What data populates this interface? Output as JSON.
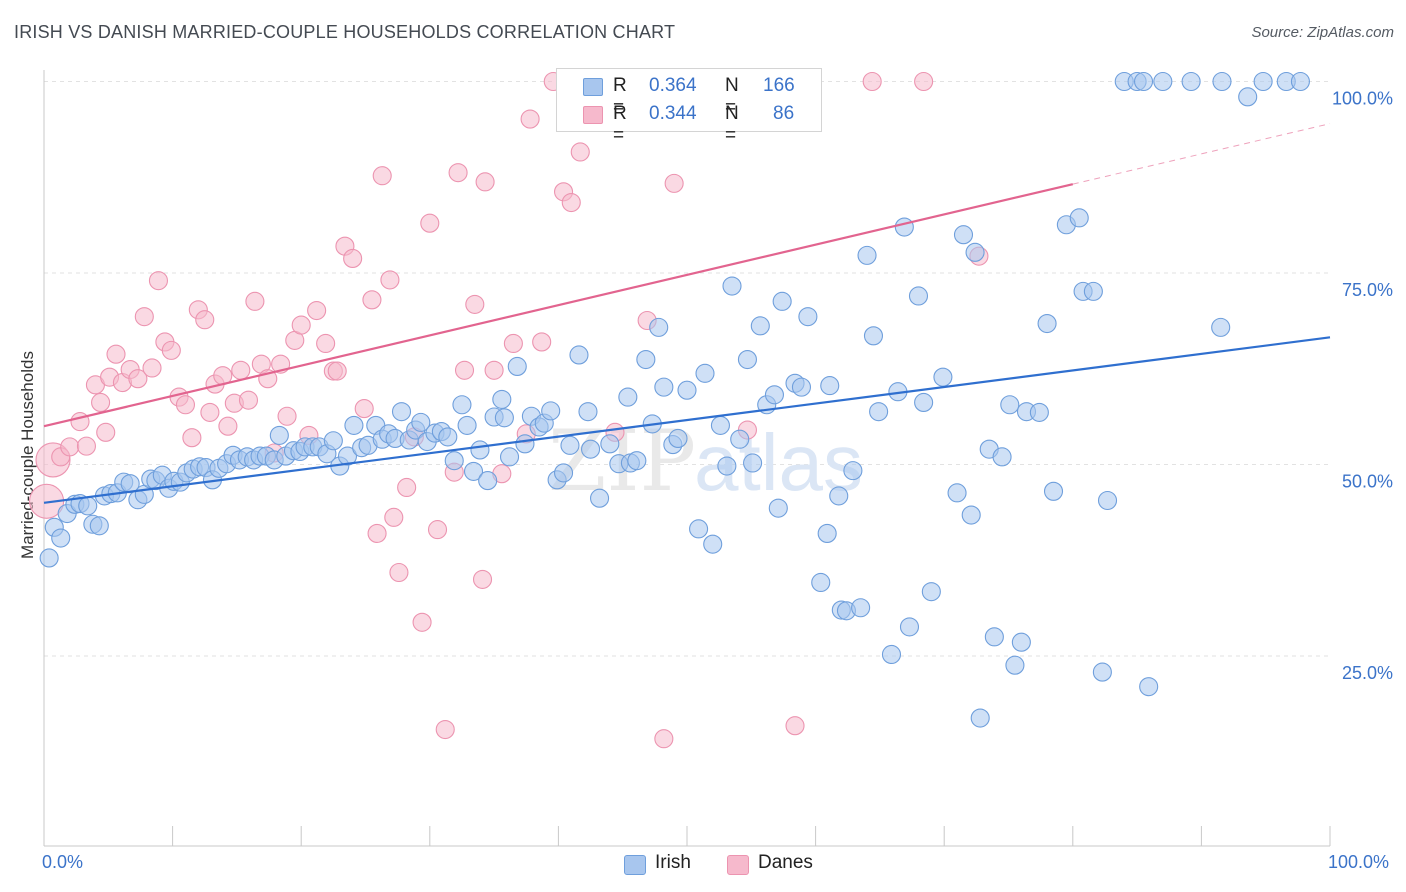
{
  "header": {
    "title": "IRISH VS DANISH MARRIED-COUPLE HOUSEHOLDS CORRELATION CHART",
    "source": "Source: ZipAtlas.com"
  },
  "watermark": {
    "zip": "ZIP",
    "atlas": "atlas"
  },
  "colors": {
    "irish_fill": "#a8c6ee",
    "irish_stroke": "#6f9fdc",
    "irish_line": "#2f6fcf",
    "danes_fill": "#f6b9cc",
    "danes_stroke": "#ec94b0",
    "danes_line": "#e2648f",
    "axis_text": "#3b73c9",
    "grid": "#e2e2e2"
  },
  "stats": {
    "irish": {
      "r_label": "R =",
      "r_value": "0.364",
      "n_label": "N =",
      "n_value": "166"
    },
    "danes": {
      "r_label": "R =",
      "r_value": "0.344",
      "n_label": "N =",
      "n_value": "86"
    }
  },
  "legend": {
    "irish": "Irish",
    "danes": "Danes"
  },
  "chart_data": {
    "type": "scatter",
    "xlabel": "",
    "ylabel": "Married-couple Households",
    "xlim": [
      0,
      100
    ],
    "ylim": [
      5,
      105
    ],
    "x_tick_labels": [
      "0.0%",
      "100.0%"
    ],
    "y_ticks": [
      {
        "value": 25,
        "label": "25.0%"
      },
      {
        "value": 50,
        "label": "50.0%"
      },
      {
        "value": 75,
        "label": "75.0%"
      },
      {
        "value": 100,
        "label": "100.0%"
      }
    ],
    "grid": true,
    "legend_position": "bottom-center",
    "series": [
      {
        "name": "Irish",
        "trend": {
          "x": [
            0,
            100
          ],
          "y": [
            45.0,
            66.6
          ]
        },
        "points": [
          [
            0.4,
            37.8
          ],
          [
            0.8,
            41.8
          ],
          [
            1.3,
            40.4
          ],
          [
            1.8,
            43.6
          ],
          [
            2.4,
            44.8
          ],
          [
            2.8,
            44.9
          ],
          [
            3.4,
            44.6
          ],
          [
            3.8,
            42.2
          ],
          [
            4.3,
            42.0
          ],
          [
            4.7,
            45.9
          ],
          [
            5.2,
            46.2
          ],
          [
            5.7,
            46.3
          ],
          [
            6.2,
            47.7
          ],
          [
            6.7,
            47.5
          ],
          [
            7.3,
            45.4
          ],
          [
            7.8,
            46.1
          ],
          [
            8.3,
            48.1
          ],
          [
            8.7,
            47.9
          ],
          [
            9.2,
            48.6
          ],
          [
            9.7,
            46.9
          ],
          [
            10.1,
            47.8
          ],
          [
            10.6,
            47.7
          ],
          [
            11.1,
            48.9
          ],
          [
            11.6,
            49.4
          ],
          [
            12.1,
            49.7
          ],
          [
            12.6,
            49.6
          ],
          [
            13.1,
            48.0
          ],
          [
            13.6,
            49.5
          ],
          [
            14.2,
            50.1
          ],
          [
            14.7,
            51.2
          ],
          [
            15.2,
            50.6
          ],
          [
            15.8,
            51.0
          ],
          [
            16.3,
            50.6
          ],
          [
            16.8,
            51.1
          ],
          [
            17.3,
            51.1
          ],
          [
            17.9,
            50.6
          ],
          [
            18.3,
            53.8
          ],
          [
            18.8,
            51.1
          ],
          [
            19.4,
            51.8
          ],
          [
            19.9,
            51.7
          ],
          [
            20.3,
            52.3
          ],
          [
            20.9,
            52.3
          ],
          [
            21.4,
            52.3
          ],
          [
            22.0,
            51.4
          ],
          [
            22.5,
            53.1
          ],
          [
            23.0,
            49.8
          ],
          [
            23.6,
            51.1
          ],
          [
            24.1,
            55.1
          ],
          [
            24.7,
            52.2
          ],
          [
            25.2,
            52.5
          ],
          [
            25.8,
            55.1
          ],
          [
            26.3,
            53.3
          ],
          [
            26.8,
            54.0
          ],
          [
            27.3,
            53.4
          ],
          [
            27.8,
            56.9
          ],
          [
            28.4,
            53.2
          ],
          [
            28.9,
            54.5
          ],
          [
            29.3,
            55.5
          ],
          [
            29.8,
            53.0
          ],
          [
            30.4,
            54.1
          ],
          [
            30.9,
            54.3
          ],
          [
            31.4,
            53.6
          ],
          [
            31.9,
            50.5
          ],
          [
            32.5,
            57.8
          ],
          [
            32.9,
            55.1
          ],
          [
            33.4,
            49.1
          ],
          [
            33.9,
            51.9
          ],
          [
            34.5,
            47.9
          ],
          [
            35.0,
            56.2
          ],
          [
            35.6,
            58.5
          ],
          [
            35.8,
            56.1
          ],
          [
            36.2,
            51.0
          ],
          [
            36.8,
            62.8
          ],
          [
            37.4,
            52.7
          ],
          [
            37.9,
            56.3
          ],
          [
            38.5,
            54.9
          ],
          [
            38.9,
            55.4
          ],
          [
            39.4,
            57.0
          ],
          [
            39.9,
            48.0
          ],
          [
            40.4,
            48.9
          ],
          [
            40.9,
            52.5
          ],
          [
            41.6,
            64.3
          ],
          [
            42.3,
            56.9
          ],
          [
            42.5,
            52.0
          ],
          [
            43.2,
            45.6
          ],
          [
            44.0,
            52.7
          ],
          [
            44.7,
            50.1
          ],
          [
            45.4,
            58.8
          ],
          [
            45.6,
            50.2
          ],
          [
            46.1,
            50.5
          ],
          [
            46.8,
            63.7
          ],
          [
            47.3,
            55.3
          ],
          [
            47.8,
            67.9
          ],
          [
            48.2,
            60.1
          ],
          [
            48.9,
            52.6
          ],
          [
            49.3,
            53.4
          ],
          [
            50.0,
            59.7
          ],
          [
            50.9,
            41.6
          ],
          [
            51.4,
            61.9
          ],
          [
            52.0,
            39.6
          ],
          [
            52.6,
            55.1
          ],
          [
            53.1,
            49.8
          ],
          [
            53.5,
            73.3
          ],
          [
            54.1,
            53.3
          ],
          [
            54.7,
            63.7
          ],
          [
            55.1,
            50.2
          ],
          [
            55.7,
            68.1
          ],
          [
            56.2,
            57.8
          ],
          [
            56.8,
            59.1
          ],
          [
            57.1,
            44.3
          ],
          [
            57.4,
            71.3
          ],
          [
            58.4,
            60.6
          ],
          [
            58.9,
            60.1
          ],
          [
            59.4,
            69.3
          ],
          [
            60.4,
            34.6
          ],
          [
            60.9,
            41.0
          ],
          [
            61.1,
            60.3
          ],
          [
            61.8,
            45.9
          ],
          [
            62.0,
            31.0
          ],
          [
            62.4,
            30.9
          ],
          [
            62.9,
            49.2
          ],
          [
            63.5,
            31.3
          ],
          [
            64.0,
            77.3
          ],
          [
            64.5,
            66.8
          ],
          [
            64.9,
            56.9
          ],
          [
            65.9,
            25.2
          ],
          [
            66.4,
            59.5
          ],
          [
            66.9,
            81.0
          ],
          [
            67.3,
            28.8
          ],
          [
            68.0,
            72.0
          ],
          [
            68.4,
            58.1
          ],
          [
            69.0,
            33.4
          ],
          [
            69.9,
            61.4
          ],
          [
            71.0,
            46.3
          ],
          [
            71.5,
            80.0
          ],
          [
            72.1,
            43.4
          ],
          [
            72.4,
            77.7
          ],
          [
            72.8,
            16.9
          ],
          [
            73.5,
            52.0
          ],
          [
            73.9,
            27.5
          ],
          [
            74.5,
            51.0
          ],
          [
            75.1,
            57.8
          ],
          [
            75.5,
            23.8
          ],
          [
            76.0,
            26.8
          ],
          [
            76.4,
            56.9
          ],
          [
            77.4,
            56.8
          ],
          [
            78.0,
            68.4
          ],
          [
            78.5,
            46.5
          ],
          [
            79.5,
            81.3
          ],
          [
            80.5,
            82.2
          ],
          [
            80.8,
            72.6
          ],
          [
            81.6,
            72.6
          ],
          [
            82.3,
            22.9
          ],
          [
            82.7,
            45.3
          ],
          [
            84.0,
            100.0
          ],
          [
            85.0,
            100.0
          ],
          [
            85.5,
            100.0
          ],
          [
            85.9,
            21.0
          ],
          [
            87.0,
            100.0
          ],
          [
            89.2,
            100.0
          ],
          [
            91.5,
            67.9
          ],
          [
            91.6,
            100.0
          ],
          [
            93.6,
            98.0
          ],
          [
            94.8,
            100.0
          ],
          [
            96.6,
            100.0
          ],
          [
            97.7,
            100.0
          ]
        ]
      },
      {
        "name": "Danes",
        "trend": {
          "x": [
            0,
            100
          ],
          "y": [
            55.0,
            94.5
          ],
          "solid_until_x": 80
        },
        "points": [
          [
            0.2,
            45.2
          ],
          [
            0.7,
            50.6
          ],
          [
            1.3,
            51.0
          ],
          [
            2.0,
            52.3
          ],
          [
            2.8,
            55.6
          ],
          [
            3.3,
            52.4
          ],
          [
            4.0,
            60.4
          ],
          [
            4.4,
            58.1
          ],
          [
            4.8,
            54.2
          ],
          [
            5.1,
            61.4
          ],
          [
            5.6,
            64.4
          ],
          [
            6.1,
            60.7
          ],
          [
            6.7,
            62.4
          ],
          [
            7.3,
            61.2
          ],
          [
            7.8,
            69.3
          ],
          [
            8.4,
            62.6
          ],
          [
            8.9,
            74.0
          ],
          [
            9.4,
            66.0
          ],
          [
            9.9,
            64.9
          ],
          [
            10.5,
            58.8
          ],
          [
            11.0,
            57.8
          ],
          [
            11.5,
            53.5
          ],
          [
            12.0,
            70.2
          ],
          [
            12.5,
            68.9
          ],
          [
            12.9,
            56.8
          ],
          [
            13.3,
            60.5
          ],
          [
            13.9,
            61.6
          ],
          [
            14.3,
            55.0
          ],
          [
            14.8,
            58.0
          ],
          [
            15.3,
            62.3
          ],
          [
            15.9,
            58.4
          ],
          [
            16.4,
            71.3
          ],
          [
            16.9,
            63.1
          ],
          [
            17.4,
            61.2
          ],
          [
            17.9,
            51.5
          ],
          [
            18.4,
            63.1
          ],
          [
            18.9,
            56.3
          ],
          [
            19.5,
            66.2
          ],
          [
            20.0,
            68.2
          ],
          [
            20.6,
            53.8
          ],
          [
            21.2,
            70.1
          ],
          [
            21.9,
            65.8
          ],
          [
            22.5,
            62.2
          ],
          [
            22.8,
            62.2
          ],
          [
            23.4,
            78.5
          ],
          [
            24.0,
            76.9
          ],
          [
            24.9,
            57.3
          ],
          [
            25.5,
            71.5
          ],
          [
            25.9,
            41.0
          ],
          [
            26.3,
            87.7
          ],
          [
            26.9,
            74.1
          ],
          [
            27.2,
            43.1
          ],
          [
            27.6,
            35.9
          ],
          [
            28.2,
            47.0
          ],
          [
            28.8,
            53.6
          ],
          [
            29.4,
            29.4
          ],
          [
            30.0,
            81.5
          ],
          [
            30.6,
            41.5
          ],
          [
            31.2,
            15.4
          ],
          [
            31.9,
            49.0
          ],
          [
            32.2,
            88.1
          ],
          [
            32.7,
            62.3
          ],
          [
            33.5,
            70.9
          ],
          [
            34.1,
            35.0
          ],
          [
            34.3,
            86.9
          ],
          [
            35.0,
            62.3
          ],
          [
            35.6,
            48.8
          ],
          [
            36.5,
            65.8
          ],
          [
            37.5,
            54.0
          ],
          [
            37.8,
            95.1
          ],
          [
            38.7,
            66.0
          ],
          [
            39.6,
            100.0
          ],
          [
            40.4,
            85.6
          ],
          [
            41.0,
            84.2
          ],
          [
            41.7,
            90.8
          ],
          [
            43.0,
            100.0
          ],
          [
            44.4,
            54.2
          ],
          [
            46.9,
            68.8
          ],
          [
            48.2,
            14.2
          ],
          [
            49.0,
            86.7
          ],
          [
            52.0,
            100.0
          ],
          [
            54.7,
            54.5
          ],
          [
            58.4,
            15.9
          ],
          [
            64.4,
            100.0
          ],
          [
            68.4,
            100.0
          ],
          [
            72.7,
            77.2
          ]
        ]
      }
    ]
  }
}
